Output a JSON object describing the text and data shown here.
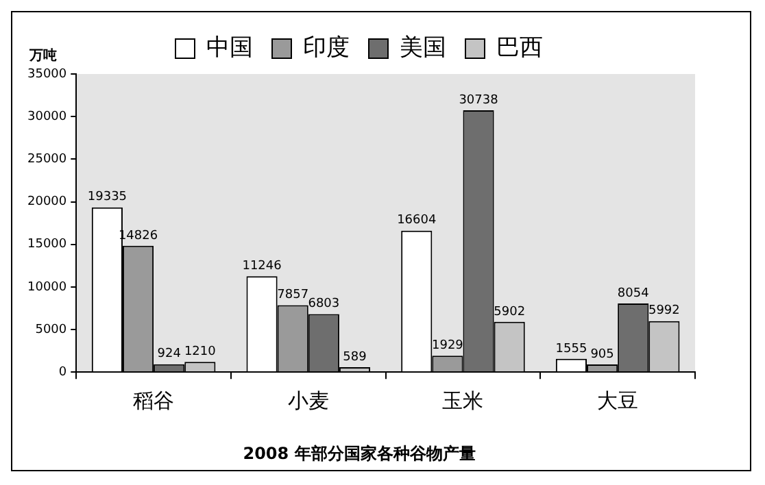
{
  "chart_data": {
    "type": "bar",
    "title": "2008 年部分国家各种谷物产量",
    "ylabel": "万吨",
    "categories": [
      "稻谷",
      "小麦",
      "玉米",
      "大豆"
    ],
    "series": [
      {
        "name": "中国",
        "color": "#ffffff",
        "values": [
          19335,
          11246,
          16604,
          1555
        ]
      },
      {
        "name": "印度",
        "color": "#9a9a9a",
        "values": [
          14826,
          7857,
          1929,
          905
        ]
      },
      {
        "name": "美国",
        "color": "#6e6e6e",
        "values": [
          924,
          6803,
          30738,
          8054
        ]
      },
      {
        "name": "巴西",
        "color": "#c4c4c4",
        "values": [
          1210,
          589,
          5902,
          5992
        ]
      }
    ],
    "ylim": [
      0,
      35000
    ],
    "yticks": [
      0,
      5000,
      10000,
      15000,
      20000,
      25000,
      30000,
      35000
    ],
    "grid": false,
    "legend": "top",
    "data_labels": true
  }
}
